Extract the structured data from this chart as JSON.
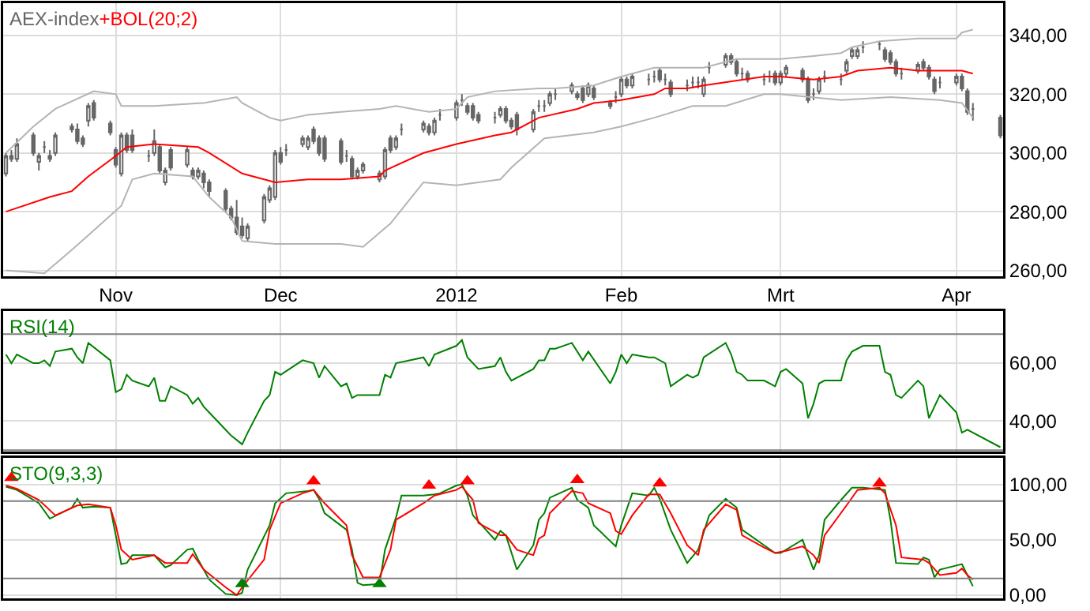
{
  "chart_data": [
    {
      "type": "candlestick",
      "grid": true,
      "xlim": [
        "2011-10-11T12:00",
        "2012-04-10T12:00"
      ],
      "ylim": [
        258,
        351
      ],
      "xticks": [
        {
          "value": "2011-11-01",
          "label": "Nov"
        },
        {
          "value": "2011-12-01",
          "label": "Dec"
        },
        {
          "value": "2012-01-02",
          "label": "2012"
        },
        {
          "value": "2012-02-01",
          "label": "Feb"
        },
        {
          "value": "2012-03-01",
          "label": "Mrt"
        },
        {
          "value": "2012-04-02",
          "label": "Apr"
        }
      ],
      "yticks": [
        {
          "value": 260,
          "label": "260,00"
        },
        {
          "value": 280,
          "label": "280,00"
        },
        {
          "value": 300,
          "label": "300,00"
        },
        {
          "value": 320,
          "label": "320,00"
        },
        {
          "value": 340,
          "label": "340,00"
        }
      ],
      "series": [
        {
          "name": "AEX-index",
          "color": "#666666",
          "x": [
            "2011-10-12",
            "2011-10-13",
            "2011-10-14",
            "2011-10-17",
            "2011-10-18",
            "2011-10-19",
            "2011-10-20",
            "2011-10-21",
            "2011-10-24",
            "2011-10-25",
            "2011-10-26",
            "2011-10-27",
            "2011-10-28",
            "2011-10-31",
            "2011-11-01",
            "2011-11-02",
            "2011-11-03",
            "2011-11-04",
            "2011-11-07",
            "2011-11-08",
            "2011-11-09",
            "2011-11-10",
            "2011-11-11",
            "2011-11-14",
            "2011-11-15",
            "2011-11-16",
            "2011-11-17",
            "2011-11-18",
            "2011-11-21",
            "2011-11-22",
            "2011-11-23",
            "2011-11-24",
            "2011-11-25",
            "2011-11-28",
            "2011-11-29",
            "2011-11-30",
            "2011-12-01",
            "2011-12-02",
            "2011-12-05",
            "2011-12-06",
            "2011-12-07",
            "2011-12-08",
            "2011-12-09",
            "2011-12-12",
            "2011-12-13",
            "2011-12-14",
            "2011-12-15",
            "2011-12-16",
            "2011-12-19",
            "2011-12-20",
            "2011-12-21",
            "2011-12-22",
            "2011-12-23",
            "2011-12-27",
            "2011-12-28",
            "2011-12-29",
            "2011-12-30",
            "2012-01-02",
            "2012-01-03",
            "2012-01-04",
            "2012-01-05",
            "2012-01-06",
            "2012-01-09",
            "2012-01-10",
            "2012-01-11",
            "2012-01-12",
            "2012-01-13",
            "2012-01-16",
            "2012-01-17",
            "2012-01-18",
            "2012-01-19",
            "2012-01-20",
            "2012-01-23",
            "2012-01-24",
            "2012-01-25",
            "2012-01-26",
            "2012-01-27",
            "2012-01-30",
            "2012-01-31",
            "2012-02-01",
            "2012-02-02",
            "2012-02-03",
            "2012-02-06",
            "2012-02-07",
            "2012-02-08",
            "2012-02-09",
            "2012-02-10",
            "2012-02-13",
            "2012-02-14",
            "2012-02-15",
            "2012-02-16",
            "2012-02-17",
            "2012-02-20",
            "2012-02-21",
            "2012-02-22",
            "2012-02-23",
            "2012-02-24",
            "2012-02-27",
            "2012-02-28",
            "2012-02-29",
            "2012-03-01",
            "2012-03-02",
            "2012-03-05",
            "2012-03-06",
            "2012-03-07",
            "2012-03-08",
            "2012-03-09",
            "2012-03-12",
            "2012-03-13",
            "2012-03-14",
            "2012-03-15",
            "2012-03-16",
            "2012-03-19",
            "2012-03-20",
            "2012-03-21",
            "2012-03-22",
            "2012-03-23",
            "2012-03-26",
            "2012-03-27",
            "2012-03-28",
            "2012-03-29",
            "2012-03-30",
            "2012-04-02",
            "2012-04-03",
            "2012-04-04",
            "2012-04-05",
            "2012-04-10"
          ],
          "ohlc": [
            [
              293,
              300,
              292,
              299
            ],
            [
              299,
              301,
              297,
              298
            ],
            [
              298,
              305,
              297,
              303
            ],
            [
              306,
              307,
              299,
              300
            ],
            [
              297,
              300,
              294,
              299
            ],
            [
              302,
              304,
              300,
              302
            ],
            [
              298,
              301,
              297,
              299
            ],
            [
              300,
              307,
              299,
              306
            ],
            [
              308,
              310,
              307,
              309
            ],
            [
              308,
              310,
              303,
              304
            ],
            [
              305,
              306,
              302,
              303
            ],
            [
              311,
              317,
              309,
              316
            ],
            [
              317,
              318,
              311,
              312
            ],
            [
              310,
              311,
              306,
              307
            ],
            [
              301,
              302,
              295,
              296
            ],
            [
              293,
              307,
              292,
              306
            ],
            [
              306,
              307,
              300,
              301
            ],
            [
              306,
              308,
              300,
              301
            ],
            [
              299,
              301,
              297,
              299
            ],
            [
              300,
              308,
              299,
              304
            ],
            [
              302,
              303,
              293,
              294
            ],
            [
              290,
              295,
              289,
              294
            ],
            [
              301,
              302,
              294,
              295
            ],
            [
              296,
              302,
              295,
              301
            ],
            [
              294,
              295,
              291,
              292
            ],
            [
              292,
              295,
              291,
              294
            ],
            [
              293,
              294,
              288,
              290
            ],
            [
              290,
              291,
              285,
              287
            ],
            [
              287,
              288,
              280,
              281
            ],
            [
              281,
              282,
              277,
              278
            ],
            [
              278,
              284,
              272,
              273
            ],
            [
              275,
              278,
              271,
              272
            ],
            [
              271,
              276,
              270,
              275
            ],
            [
              277,
              286,
              276,
              285
            ],
            [
              284,
              289,
              283,
              288
            ],
            [
              285,
              301,
              284,
              300
            ],
            [
              300,
              302,
              296,
              297
            ],
            [
              301,
              303,
              299,
              301
            ],
            [
              303,
              306,
              302,
              305
            ],
            [
              302,
              306,
              301,
              305
            ],
            [
              308,
              309,
              303,
              304
            ],
            [
              305,
              306,
              299,
              300
            ],
            [
              305,
              306,
              297,
              298
            ],
            [
              304,
              305,
              296,
              297
            ],
            [
              299,
              301,
              297,
              299
            ],
            [
              298,
              299,
              291,
              292
            ],
            [
              292,
              295,
              291,
              294
            ],
            [
              294,
              297,
              293,
              296
            ],
            [
              291,
              294,
              290,
              293
            ],
            [
              292,
              302,
              291,
              301
            ],
            [
              305,
              306,
              300,
              301
            ],
            [
              302,
              306,
              301,
              305
            ],
            [
              308,
              310,
              306,
              308
            ],
            [
              308,
              311,
              307,
              310
            ],
            [
              309,
              310,
              306,
              307
            ],
            [
              307,
              312,
              306,
              311
            ],
            [
              313,
              315,
              311,
              313
            ],
            [
              312,
              318,
              311,
              317
            ],
            [
              318,
              320,
              316,
              318
            ],
            [
              316,
              317,
              313,
              314
            ],
            [
              316,
              317,
              311,
              312
            ],
            [
              313,
              314,
              310,
              311
            ],
            [
              312,
              314,
              310,
              312
            ],
            [
              313,
              316,
              312,
              315
            ],
            [
              315,
              316,
              310,
              311
            ],
            [
              311,
              312,
              308,
              309
            ],
            [
              313,
              314,
              306,
              308
            ],
            [
              308,
              315,
              307,
              314
            ],
            [
              316,
              318,
              314,
              316
            ],
            [
              316,
              318,
              314,
              316
            ],
            [
              317,
              321,
              316,
              320
            ],
            [
              320,
              322,
              318,
              320
            ],
            [
              321,
              324,
              320,
              323
            ],
            [
              319,
              321,
              318,
              320
            ],
            [
              322,
              323,
              317,
              318
            ],
            [
              320,
              324,
              319,
              323
            ],
            [
              322,
              323,
              318,
              319
            ],
            [
              317,
              318,
              315,
              316
            ],
            [
              319,
              321,
              317,
              319
            ],
            [
              320,
              326,
              319,
              325
            ],
            [
              325,
              326,
              322,
              323
            ],
            [
              323,
              327,
              322,
              326
            ],
            [
              325,
              327,
              323,
              325
            ],
            [
              326,
              328,
              324,
              326
            ],
            [
              328,
              329,
              324,
              325
            ],
            [
              325,
              327,
              323,
              325
            ],
            [
              324,
              325,
              319,
              320
            ],
            [
              323,
              325,
              321,
              323
            ],
            [
              324,
              326,
              322,
              324
            ],
            [
              324,
              326,
              322,
              324
            ],
            [
              320,
              326,
              319,
              325
            ],
            [
              329,
              331,
              327,
              329
            ],
            [
              330,
              334,
              329,
              333
            ],
            [
              333,
              334,
              330,
              331
            ],
            [
              331,
              332,
              326,
              327
            ],
            [
              327,
              329,
              325,
              327
            ],
            [
              327,
              328,
              324,
              325
            ],
            [
              325,
              327,
              323,
              325
            ],
            [
              326,
              328,
              324,
              326
            ],
            [
              327,
              328,
              323,
              324
            ],
            [
              324,
              328,
              323,
              327
            ],
            [
              327,
              330,
              326,
              329
            ],
            [
              328,
              329,
              324,
              325
            ],
            [
              325,
              326,
              317,
              318
            ],
            [
              320,
              322,
              318,
              320
            ],
            [
              321,
              326,
              320,
              325
            ],
            [
              326,
              328,
              324,
              326
            ],
            [
              325,
              327,
              323,
              325
            ],
            [
              328,
              332,
              327,
              331
            ],
            [
              333,
              336,
              332,
              335
            ],
            [
              333,
              336,
              332,
              335
            ],
            [
              336,
              338,
              334,
              336
            ],
            [
              337,
              338,
              335,
              337
            ],
            [
              335,
              336,
              331,
              332
            ],
            [
              334,
              335,
              330,
              331
            ],
            [
              331,
              332,
              326,
              327
            ],
            [
              327,
              329,
              325,
              327
            ],
            [
              328,
              331,
              327,
              330
            ],
            [
              331,
              332,
              328,
              329
            ],
            [
              329,
              330,
              325,
              326
            ],
            [
              325,
              326,
              320,
              321
            ],
            [
              324,
              326,
              322,
              324
            ],
            [
              324,
              327,
              323,
              326
            ],
            [
              326,
              327,
              321,
              322
            ],
            [
              321,
              322,
              313,
              314
            ],
            [
              315,
              317,
              311,
              315
            ],
            [
              312,
              313,
              305,
              306
            ]
          ]
        },
        {
          "type": "line",
          "color": "#b4b4b4",
          "x": [
            "2011-10-12",
            "2011-10-17",
            "2011-10-21",
            "2011-10-28",
            "2011-11-01",
            "2011-11-02",
            "2011-11-08",
            "2011-11-17",
            "2011-11-23",
            "2011-11-24",
            "2011-11-29",
            "2011-12-01",
            "2011-12-06",
            "2011-12-12",
            "2011-12-19",
            "2011-12-22",
            "2011-12-28",
            "2012-01-02",
            "2012-01-04",
            "2012-01-09",
            "2012-01-17",
            "2012-01-20",
            "2012-01-27",
            "2012-02-01",
            "2012-02-07",
            "2012-02-10",
            "2012-02-16",
            "2012-02-22",
            "2012-03-01",
            "2012-03-07",
            "2012-03-12",
            "2012-03-14",
            "2012-03-19",
            "2012-03-26",
            "2012-04-02",
            "2012-04-03",
            "2012-04-05"
          ],
          "values": [
            300,
            309,
            315,
            321,
            320,
            316,
            316,
            317,
            319,
            317,
            312,
            311,
            313,
            314,
            315,
            316,
            314,
            315,
            319,
            321,
            322,
            322,
            323,
            326,
            329,
            329,
            329,
            332,
            332,
            333,
            334,
            336,
            338,
            339,
            339,
            341,
            342
          ]
        },
        {
          "type": "line",
          "name": "+BOL(20;2)",
          "color": "#ff0000",
          "x": [
            "2011-10-12",
            "2011-10-20",
            "2011-10-24",
            "2011-10-27",
            "2011-11-01",
            "2011-11-03",
            "2011-11-08",
            "2011-11-16",
            "2011-11-18",
            "2011-11-24",
            "2011-11-28",
            "2011-11-30",
            "2011-12-06",
            "2011-12-12",
            "2011-12-19",
            "2011-12-20",
            "2011-12-27",
            "2012-01-02",
            "2012-01-09",
            "2012-01-12",
            "2012-01-17",
            "2012-01-24",
            "2012-01-27",
            "2012-02-01",
            "2012-02-07",
            "2012-02-09",
            "2012-02-13",
            "2012-02-16",
            "2012-02-27",
            "2012-03-01",
            "2012-03-07",
            "2012-03-12",
            "2012-03-15",
            "2012-03-21",
            "2012-03-26",
            "2012-04-03",
            "2012-04-05"
          ],
          "values": [
            280,
            285,
            287,
            292,
            299,
            302,
            303,
            302,
            300,
            293,
            291,
            290,
            291,
            291,
            292,
            294,
            300,
            303,
            306,
            307,
            312,
            315,
            317,
            318,
            320,
            322,
            322,
            323,
            326,
            326,
            325,
            326,
            328,
            329,
            328,
            328,
            327
          ]
        },
        {
          "type": "line",
          "color": "#b4b4b4",
          "x": [
            "2011-10-12",
            "2011-10-19",
            "2011-10-24",
            "2011-10-27",
            "2011-11-02",
            "2011-11-04",
            "2011-11-08",
            "2011-11-15",
            "2011-11-18",
            "2011-11-22",
            "2011-11-24",
            "2011-11-30",
            "2011-12-12",
            "2011-12-16",
            "2011-12-21",
            "2011-12-27",
            "2012-01-02",
            "2012-01-10",
            "2012-01-12",
            "2012-01-18",
            "2012-01-27",
            "2012-02-01",
            "2012-02-07",
            "2012-02-14",
            "2012-02-20",
            "2012-02-27",
            "2012-03-01",
            "2012-03-12",
            "2012-03-21",
            "2012-03-30",
            "2012-04-03",
            "2012-04-05"
          ],
          "values": [
            260,
            259,
            267,
            272,
            282,
            291,
            293,
            292,
            285,
            278,
            270,
            269,
            269,
            268,
            276,
            290,
            289,
            291,
            295,
            305,
            307,
            309,
            312,
            316,
            316,
            320,
            320,
            318,
            319,
            318,
            317,
            312
          ]
        }
      ]
    },
    {
      "type": "line",
      "grid": true,
      "tick_labels": "y",
      "xlim": [
        "2011-10-11T12:00",
        "2012-04-10T12:00"
      ],
      "ylim": [
        29.5,
        78
      ],
      "xticks": [
        {
          "value": "2011-11-01",
          "label": null
        },
        {
          "value": "2011-12-01",
          "label": null
        },
        {
          "value": "2012-01-02",
          "label": null
        },
        {
          "value": "2012-02-01",
          "label": null
        },
        {
          "value": "2012-03-01",
          "label": null
        },
        {
          "value": "2012-04-02",
          "label": null
        }
      ],
      "yticks": [
        {
          "value": 40,
          "label": "40,00"
        },
        {
          "value": 60,
          "label": "60,00"
        }
      ],
      "ref_lines": [
        {
          "axis": "y",
          "value": 70,
          "color": "#808080"
        },
        {
          "axis": "y",
          "value": 30,
          "color": "#808080"
        }
      ],
      "series": [
        {
          "name": "RSI(14)",
          "color": "#008000",
          "x": [
            "2011-10-12",
            "2011-10-13",
            "2011-10-14",
            "2011-10-17",
            "2011-10-18",
            "2011-10-19",
            "2011-10-20",
            "2011-10-21",
            "2011-10-24",
            "2011-10-25",
            "2011-10-26",
            "2011-10-27",
            "2011-10-31",
            "2011-11-01",
            "2011-11-02",
            "2011-11-03",
            "2011-11-04",
            "2011-11-07",
            "2011-11-08",
            "2011-11-09",
            "2011-11-10",
            "2011-11-11",
            "2011-11-14",
            "2011-11-15",
            "2011-11-16",
            "2011-11-17",
            "2011-11-18",
            "2011-11-21",
            "2011-11-22",
            "2011-11-24",
            "2011-11-25",
            "2011-11-28",
            "2011-11-29",
            "2011-11-30",
            "2011-12-01",
            "2011-12-05",
            "2011-12-07",
            "2011-12-08",
            "2011-12-09",
            "2011-12-12",
            "2011-12-13",
            "2011-12-14",
            "2011-12-15",
            "2011-12-16",
            "2011-12-19",
            "2011-12-20",
            "2011-12-21",
            "2011-12-22",
            "2011-12-27",
            "2011-12-28",
            "2011-12-29",
            "2012-01-02",
            "2012-01-03",
            "2012-01-04",
            "2012-01-06",
            "2012-01-09",
            "2012-01-10",
            "2012-01-11",
            "2012-01-12",
            "2012-01-16",
            "2012-01-17",
            "2012-01-18",
            "2012-01-19",
            "2012-01-20",
            "2012-01-23",
            "2012-01-25",
            "2012-01-26",
            "2012-01-30",
            "2012-01-31",
            "2012-02-01",
            "2012-02-02",
            "2012-02-03",
            "2012-02-06",
            "2012-02-07",
            "2012-02-09",
            "2012-02-10",
            "2012-02-13",
            "2012-02-14",
            "2012-02-15",
            "2012-02-16",
            "2012-02-20",
            "2012-02-21",
            "2012-02-22",
            "2012-02-23",
            "2012-02-24",
            "2012-02-27",
            "2012-02-29",
            "2012-03-01",
            "2012-03-02",
            "2012-03-05",
            "2012-03-06",
            "2012-03-07",
            "2012-03-08",
            "2012-03-09",
            "2012-03-12",
            "2012-03-13",
            "2012-03-14",
            "2012-03-16",
            "2012-03-19",
            "2012-03-20",
            "2012-03-21",
            "2012-03-22",
            "2012-03-23",
            "2012-03-26",
            "2012-03-27",
            "2012-03-28",
            "2012-03-29",
            "2012-03-30",
            "2012-04-02",
            "2012-04-03",
            "2012-04-04",
            "2012-04-10"
          ],
          "values": [
            63,
            60,
            63,
            60,
            60,
            61,
            59,
            64,
            65,
            62,
            60,
            67,
            61,
            50,
            51,
            56,
            54,
            52,
            55,
            47,
            47,
            52,
            49,
            46,
            48,
            45,
            43,
            37,
            35,
            32,
            36,
            47,
            49,
            57,
            56,
            61,
            60,
            55,
            59,
            52,
            53,
            48,
            49,
            49,
            49,
            56,
            55,
            60,
            62,
            59,
            63,
            66,
            68,
            62,
            58,
            59,
            62,
            57,
            54,
            58,
            61,
            61,
            65,
            65,
            67,
            61,
            64,
            53,
            57,
            63,
            60,
            63,
            62,
            62,
            60,
            52,
            56,
            55,
            56,
            62,
            67,
            63,
            57,
            56,
            54,
            54,
            52,
            57,
            58,
            53,
            41,
            46,
            53,
            54,
            54,
            61,
            64,
            66,
            66,
            57,
            56,
            49,
            48,
            54,
            52,
            41,
            45,
            49,
            43,
            36,
            37,
            31
          ]
        }
      ]
    },
    {
      "type": "line",
      "grid": true,
      "tick_labels": "y",
      "xlim": [
        "2011-10-11T12:00",
        "2012-04-10T12:00"
      ],
      "ylim": [
        -3,
        124
      ],
      "xticks": [
        {
          "value": "2011-11-01",
          "label": null
        },
        {
          "value": "2011-12-01",
          "label": null
        },
        {
          "value": "2012-01-02",
          "label": null
        },
        {
          "value": "2012-02-01",
          "label": null
        },
        {
          "value": "2012-03-01",
          "label": null
        },
        {
          "value": "2012-04-02",
          "label": null
        }
      ],
      "yticks": [
        {
          "value": 0,
          "label": "0,00"
        },
        {
          "value": 50,
          "label": "50,00"
        },
        {
          "value": 100,
          "label": "100,00"
        }
      ],
      "ref_lines": [
        {
          "axis": "y",
          "value": 85,
          "color": "#808080"
        },
        {
          "axis": "y",
          "value": 15,
          "color": "#808080"
        }
      ],
      "series": [
        {
          "name": "STO(9,3,3)",
          "color": "#008000",
          "x": [
            "2011-10-12",
            "2011-10-14",
            "2011-10-18",
            "2011-10-20",
            "2011-10-24",
            "2011-10-25",
            "2011-10-26",
            "2011-10-28",
            "2011-10-31",
            "2011-11-01",
            "2011-11-02",
            "2011-11-03",
            "2011-11-04",
            "2011-11-08",
            "2011-11-10",
            "2011-11-11",
            "2011-11-14",
            "2011-11-15",
            "2011-11-16",
            "2011-11-18",
            "2011-11-21",
            "2011-11-23",
            "2011-11-24",
            "2011-11-25",
            "2011-11-29",
            "2011-11-30",
            "2011-12-02",
            "2011-12-06",
            "2011-12-07",
            "2011-12-08",
            "2011-12-09",
            "2011-12-13",
            "2011-12-14",
            "2011-12-15",
            "2011-12-16",
            "2011-12-19",
            "2011-12-20",
            "2011-12-22",
            "2011-12-23",
            "2011-12-27",
            "2011-12-29",
            "2011-12-30",
            "2012-01-02",
            "2012-01-03",
            "2012-01-04",
            "2012-01-05",
            "2012-01-09",
            "2012-01-10",
            "2012-01-11",
            "2012-01-13",
            "2012-01-16",
            "2012-01-17",
            "2012-01-18",
            "2012-01-19",
            "2012-01-23",
            "2012-01-24",
            "2012-01-26",
            "2012-01-27",
            "2012-01-31",
            "2012-02-01",
            "2012-02-03",
            "2012-02-06",
            "2012-02-07",
            "2012-02-08",
            "2012-02-10",
            "2012-02-13",
            "2012-02-15",
            "2012-02-17",
            "2012-02-20",
            "2012-02-22",
            "2012-02-23",
            "2012-02-27",
            "2012-02-29",
            "2012-03-01",
            "2012-03-05",
            "2012-03-06",
            "2012-03-07",
            "2012-03-08",
            "2012-03-09",
            "2012-03-12",
            "2012-03-14",
            "2012-03-16",
            "2012-03-20",
            "2012-03-21",
            "2012-03-22",
            "2012-03-26",
            "2012-03-27",
            "2012-03-28",
            "2012-03-29",
            "2012-03-30",
            "2012-04-03",
            "2012-04-04",
            "2012-04-05"
          ],
          "values": [
            98,
            95,
            83,
            69,
            79,
            87,
            79,
            80,
            79,
            54,
            28,
            29,
            36,
            36,
            25,
            27,
            41,
            42,
            32,
            14,
            1,
            0,
            2,
            23,
            63,
            83,
            92,
            94,
            95,
            87,
            74,
            59,
            41,
            11,
            9,
            10,
            41,
            70,
            90,
            90,
            91,
            92,
            99,
            100,
            90,
            72,
            50,
            58,
            54,
            23,
            45,
            68,
            74,
            88,
            97,
            86,
            79,
            63,
            44,
            63,
            92,
            90,
            97,
            87,
            59,
            29,
            41,
            72,
            87,
            79,
            59,
            45,
            38,
            38,
            50,
            36,
            23,
            36,
            68,
            86,
            97,
            97,
            95,
            68,
            29,
            28,
            34,
            32,
            16,
            23,
            28,
            18,
            8
          ]
        },
        {
          "color": "#ff0000",
          "x": [
            "2011-10-12",
            "2011-10-14",
            "2011-10-18",
            "2011-10-21",
            "2011-10-25",
            "2011-10-27",
            "2011-10-31",
            "2011-11-01",
            "2011-11-02",
            "2011-11-04",
            "2011-11-08",
            "2011-11-10",
            "2011-11-14",
            "2011-11-15",
            "2011-11-17",
            "2011-11-21",
            "2011-11-23",
            "2011-11-24",
            "2011-11-28",
            "2011-11-29",
            "2011-12-01",
            "2011-12-05",
            "2011-12-07",
            "2011-12-09",
            "2011-12-13",
            "2011-12-14",
            "2011-12-16",
            "2011-12-19",
            "2011-12-21",
            "2011-12-22",
            "2011-12-27",
            "2011-12-29",
            "2012-01-02",
            "2012-01-03",
            "2012-01-05",
            "2012-01-06",
            "2012-01-10",
            "2012-01-11",
            "2012-01-13",
            "2012-01-16",
            "2012-01-17",
            "2012-01-18",
            "2012-01-19",
            "2012-01-23",
            "2012-01-25",
            "2012-01-26",
            "2012-01-30",
            "2012-01-31",
            "2012-02-01",
            "2012-02-03",
            "2012-02-06",
            "2012-02-08",
            "2012-02-10",
            "2012-02-13",
            "2012-02-15",
            "2012-02-16",
            "2012-02-20",
            "2012-02-22",
            "2012-02-23",
            "2012-02-27",
            "2012-02-29",
            "2012-03-02",
            "2012-03-05",
            "2012-03-07",
            "2012-03-08",
            "2012-03-09",
            "2012-03-13",
            "2012-03-15",
            "2012-03-19",
            "2012-03-20",
            "2012-03-22",
            "2012-03-23",
            "2012-03-27",
            "2012-03-28",
            "2012-03-30",
            "2012-04-02",
            "2012-04-03",
            "2012-04-04",
            "2012-04-05"
          ],
          "values": [
            99,
            96,
            86,
            72,
            81,
            82,
            79,
            63,
            41,
            32,
            36,
            29,
            29,
            37,
            23,
            7,
            0,
            7,
            32,
            59,
            83,
            92,
            95,
            83,
            63,
            36,
            16,
            16,
            41,
            68,
            83,
            90,
            95,
            98,
            86,
            65,
            54,
            54,
            41,
            36,
            51,
            54,
            74,
            94,
            92,
            83,
            74,
            58,
            55,
            72,
            91,
            91,
            74,
            45,
            36,
            59,
            82,
            77,
            54,
            43,
            38,
            40,
            44,
            36,
            29,
            54,
            81,
            95,
            97,
            92,
            63,
            34,
            32,
            29,
            18,
            20,
            24,
            18,
            14
          ]
        },
        {
          "type": "scatter",
          "marker": "triangle",
          "color": "#ff0000",
          "x": [
            "2011-10-13",
            "2011-12-07",
            "2011-12-28",
            "2012-01-04",
            "2012-01-24",
            "2012-02-08",
            "2012-03-19"
          ],
          "values": [
            106,
            103,
            99,
            103,
            104,
            101,
            101
          ]
        },
        {
          "type": "scatter",
          "marker": "triangle",
          "color": "#008000",
          "x": [
            "2011-11-24",
            "2011-12-19"
          ],
          "values": [
            10,
            10
          ]
        }
      ]
    }
  ]
}
